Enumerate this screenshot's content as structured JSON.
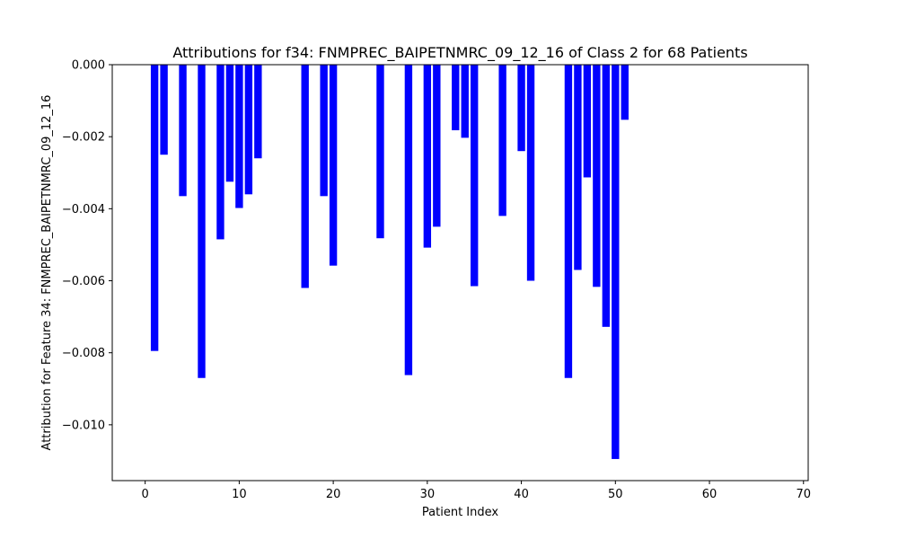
{
  "chart_data": {
    "type": "bar",
    "title": "Attributions for f34: FNMPREC_BAIPETNMRC_09_12_16 of Class 2 for 68 Patients",
    "xlabel": "Patient Index",
    "ylabel": "Attribution for Feature 34: FNMPREC_BAIPETNMRC_09_12_16",
    "xlim": [
      -3.5,
      70.5
    ],
    "ylim": [
      -0.01155,
      0.0
    ],
    "x_ticks": [
      0,
      10,
      20,
      30,
      40,
      50,
      60,
      70
    ],
    "y_ticks": [
      0.0,
      -0.002,
      -0.004,
      -0.006,
      -0.008,
      -0.01
    ],
    "y_tick_labels": [
      "0.000",
      "−0.002",
      "−0.004",
      "−0.006",
      "−0.008",
      "−0.010"
    ],
    "bar_color": "#0000ff",
    "grid": false,
    "legend": "none",
    "points": [
      {
        "x": 1,
        "y": -0.00795
      },
      {
        "x": 2,
        "y": -0.0025
      },
      {
        "x": 4,
        "y": -0.00365
      },
      {
        "x": 6,
        "y": -0.0087
      },
      {
        "x": 8,
        "y": -0.00485
      },
      {
        "x": 9,
        "y": -0.00325
      },
      {
        "x": 10,
        "y": -0.00398
      },
      {
        "x": 11,
        "y": -0.0036
      },
      {
        "x": 12,
        "y": -0.0026
      },
      {
        "x": 17,
        "y": -0.0062
      },
      {
        "x": 19,
        "y": -0.00365
      },
      {
        "x": 20,
        "y": -0.00558
      },
      {
        "x": 25,
        "y": -0.00482
      },
      {
        "x": 28,
        "y": -0.00862
      },
      {
        "x": 30,
        "y": -0.00508
      },
      {
        "x": 31,
        "y": -0.0045
      },
      {
        "x": 33,
        "y": -0.00182
      },
      {
        "x": 34,
        "y": -0.00203
      },
      {
        "x": 35,
        "y": -0.00615
      },
      {
        "x": 38,
        "y": -0.0042
      },
      {
        "x": 40,
        "y": -0.0024
      },
      {
        "x": 41,
        "y": -0.006
      },
      {
        "x": 45,
        "y": -0.0087
      },
      {
        "x": 46,
        "y": -0.0057
      },
      {
        "x": 47,
        "y": -0.00313
      },
      {
        "x": 48,
        "y": -0.00617
      },
      {
        "x": 49,
        "y": -0.00728
      },
      {
        "x": 50,
        "y": -0.01095
      },
      {
        "x": 51,
        "y": -0.00153
      }
    ]
  }
}
